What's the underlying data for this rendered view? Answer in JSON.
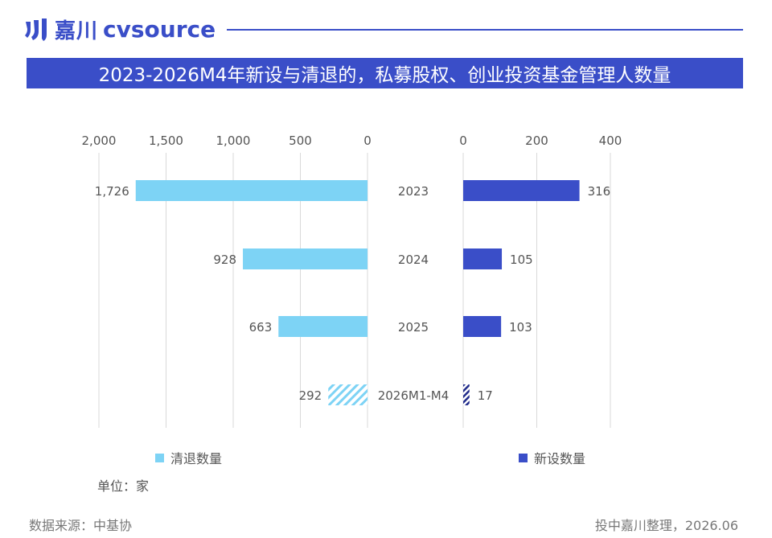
{
  "brand": {
    "name_cn": "嘉川",
    "name_en": "cvsource",
    "color": "#3a4ec8"
  },
  "title": "2023-2026M4年新设与清退的，私募股权、创业投资基金管理人数量",
  "unit_label": "单位：家",
  "source": "数据来源：中基协",
  "credit": "投中嘉川整理，2026.06",
  "colors": {
    "exit": "#7dd3f5",
    "new": "#3a4ec8",
    "grid": "#d9d9d9",
    "text": "#555555"
  },
  "chart_data": {
    "type": "bar",
    "orientation": "horizontal-butterfly",
    "categories": [
      "2023",
      "2024",
      "2025",
      "2026M1-M4"
    ],
    "series": [
      {
        "name": "清退数量",
        "values": [
          1726,
          928,
          663,
          292
        ],
        "value_labels": [
          "1,726",
          "928",
          "663",
          "292"
        ],
        "xlim": [
          2000,
          0
        ],
        "ticks": [
          2000,
          1500,
          1000,
          500,
          0
        ],
        "tick_labels": [
          "2,000",
          "1,500",
          "1,000",
          "500",
          "0"
        ],
        "color": "#7dd3f5",
        "hatched_last": true
      },
      {
        "name": "新设数量",
        "values": [
          316,
          105,
          103,
          17
        ],
        "value_labels": [
          "316",
          "105",
          "103",
          "17"
        ],
        "xlim": [
          0,
          400
        ],
        "ticks": [
          0,
          200,
          400
        ],
        "tick_labels": [
          "0",
          "200",
          "400"
        ],
        "color": "#3a4ec8",
        "hatched_last": true
      }
    ],
    "grid": true,
    "legend": "bottom"
  }
}
